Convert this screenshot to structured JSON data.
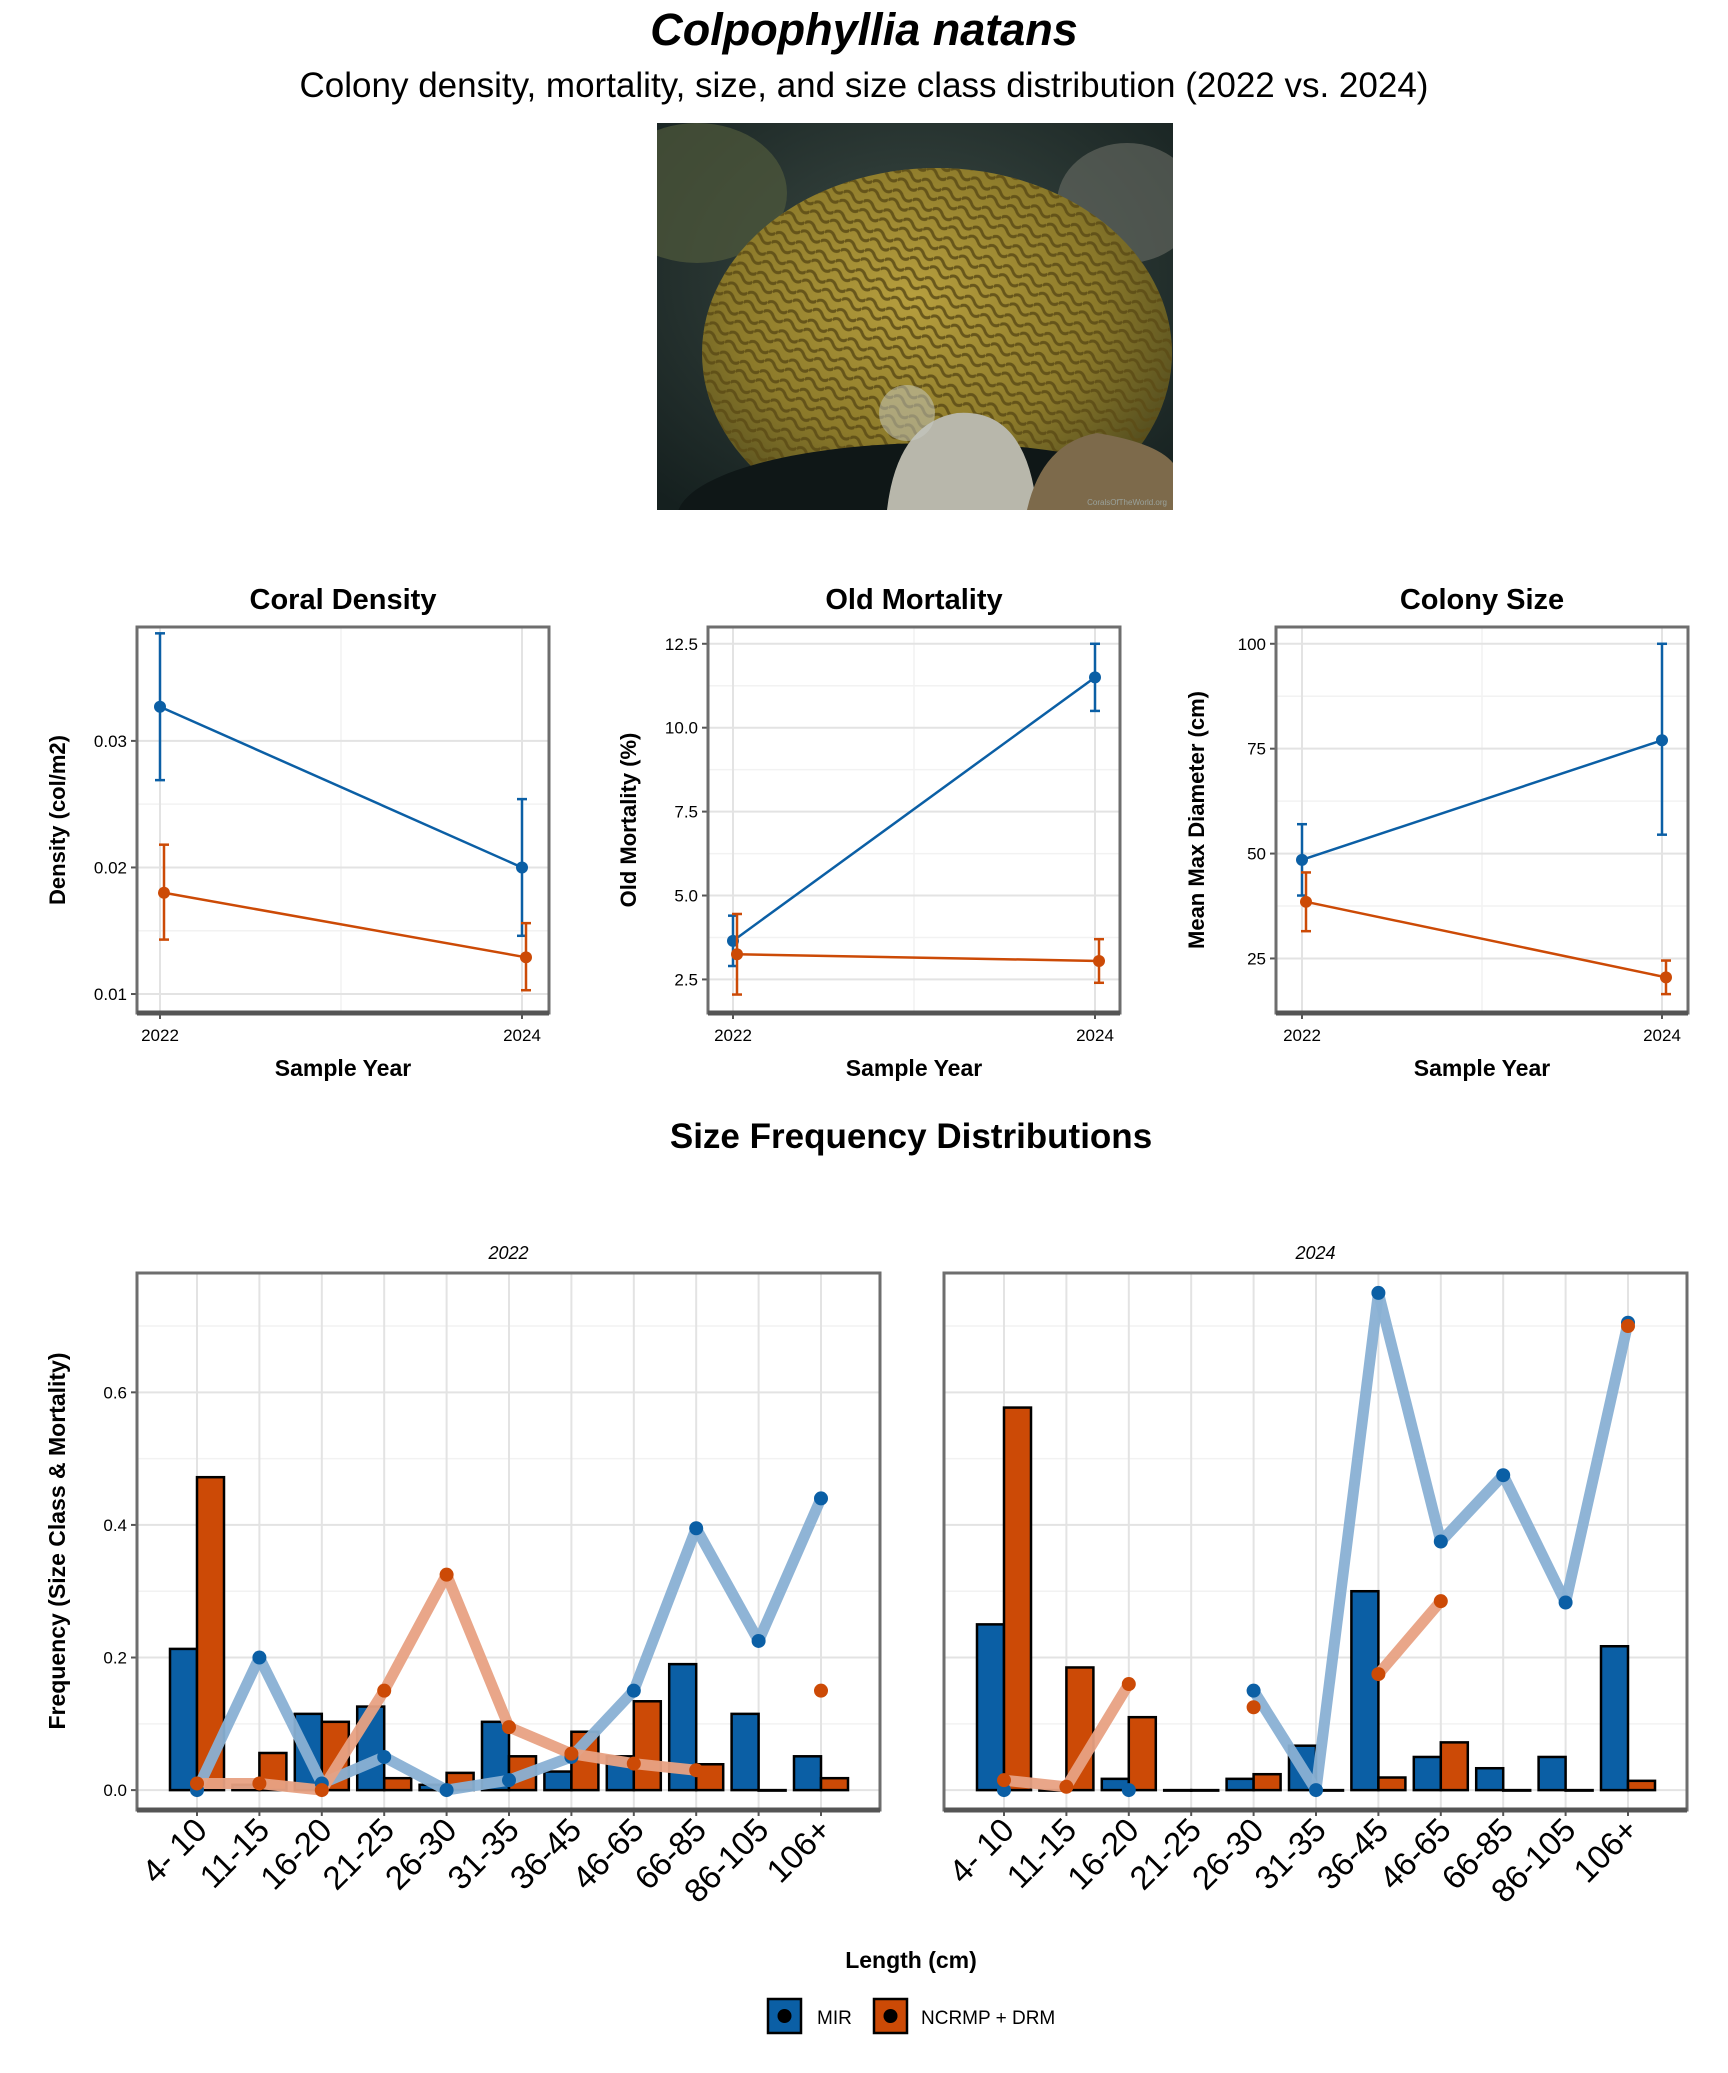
{
  "header": {
    "title": "Colpophyllia natans",
    "subtitle": "Colony density, mortality, size, and size class distribution (2022 vs. 2024)",
    "photo_credit": "CoralsOfTheWorld.org"
  },
  "colors": {
    "MIR": "#0B5FA5",
    "NCRMP + DRM": "#CC4A06",
    "MIR_line": "#8AB1D4",
    "NCRMP_line": "#E8A283"
  },
  "legend": {
    "items": [
      "MIR",
      "NCRMP + DRM"
    ],
    "placement": "bottom"
  },
  "section_title": "Size Frequency Distributions",
  "chart_data": [
    {
      "type": "line",
      "title": "Coral Density",
      "xlabel": "Sample Year",
      "ylabel": "Density (col/m2)",
      "x": [
        2022,
        2024
      ],
      "ylim": [
        0.0085,
        0.039
      ],
      "yticks": [
        0.01,
        0.02,
        0.03
      ],
      "ytick_labels": [
        "0.01",
        "0.02",
        "0.03"
      ],
      "xtick_labels": [
        "2022",
        "2024"
      ],
      "grid": true,
      "series": [
        {
          "name": "MIR",
          "values": [
            0.0327,
            0.02
          ],
          "lower": [
            0.0269,
            0.0146
          ],
          "upper": [
            0.0385,
            0.0254
          ]
        },
        {
          "name": "NCRMP + DRM",
          "values": [
            0.018,
            0.0129
          ],
          "lower": [
            0.0143,
            0.0103
          ],
          "upper": [
            0.0218,
            0.0156
          ]
        }
      ]
    },
    {
      "type": "line",
      "title": "Old Mortality",
      "xlabel": "Sample Year",
      "ylabel": "Old Mortality (%)",
      "x": [
        2022,
        2024
      ],
      "ylim": [
        1.5,
        13.0
      ],
      "yticks": [
        2.5,
        5.0,
        7.5,
        10.0,
        12.5
      ],
      "ytick_labels": [
        "2.5",
        "5.0",
        "7.5",
        "10.0",
        "12.5"
      ],
      "xtick_labels": [
        "2022",
        "2024"
      ],
      "grid": true,
      "series": [
        {
          "name": "MIR",
          "values": [
            3.65,
            11.5
          ],
          "lower": [
            2.9,
            10.5
          ],
          "upper": [
            4.4,
            12.5
          ]
        },
        {
          "name": "NCRMP + DRM",
          "values": [
            3.25,
            3.05
          ],
          "lower": [
            2.05,
            2.4
          ],
          "upper": [
            4.45,
            3.7
          ]
        }
      ]
    },
    {
      "type": "line",
      "title": "Colony Size",
      "xlabel": "Sample Year",
      "ylabel": "Mean Max Diameter (cm)",
      "x": [
        2022,
        2024
      ],
      "ylim": [
        12,
        104
      ],
      "yticks": [
        25,
        50,
        75,
        100
      ],
      "ytick_labels": [
        "25",
        "50",
        "75",
        "100"
      ],
      "xtick_labels": [
        "2022",
        "2024"
      ],
      "grid": true,
      "series": [
        {
          "name": "MIR",
          "values": [
            48.5,
            77.0
          ],
          "lower": [
            40,
            54.5
          ],
          "upper": [
            57,
            100
          ]
        },
        {
          "name": "NCRMP + DRM",
          "values": [
            38.5,
            20.5
          ],
          "lower": [
            31.5,
            16.5
          ],
          "upper": [
            45.5,
            24.5
          ]
        }
      ]
    },
    {
      "type": "bar",
      "facet": "2022",
      "xlabel": "Length (cm)",
      "ylabel": "Frequency (Size Class & Mortality)",
      "categories": [
        "4- 10",
        "11-15",
        "16-20",
        "21-25",
        "26-30",
        "31-35",
        "36-45",
        "46-65",
        "66-85",
        "86-105",
        "106+"
      ],
      "ylim": [
        -0.03,
        0.78
      ],
      "yticks": [
        0.0,
        0.2,
        0.4,
        0.6
      ],
      "ytick_labels": [
        "0.0",
        "0.2",
        "0.4",
        "0.6"
      ],
      "grid": true,
      "bar_series": [
        {
          "name": "MIR",
          "values": [
            0.213,
            0.008,
            0.115,
            0.126,
            0.008,
            0.103,
            0.028,
            0.051,
            0.19,
            0.115,
            0.051
          ]
        },
        {
          "name": "NCRMP + DRM",
          "values": [
            0.472,
            0.056,
            0.103,
            0.018,
            0.026,
            0.051,
            0.088,
            0.134,
            0.039,
            0.0,
            0.018
          ]
        }
      ],
      "mortality_series": [
        {
          "name": "MIR",
          "values": [
            0.0,
            0.2,
            0.01,
            0.05,
            0.0,
            0.015,
            0.05,
            0.15,
            0.395,
            0.225,
            0.44
          ]
        },
        {
          "name": "NCRMP + DRM",
          "values": [
            0.01,
            0.01,
            0.0,
            0.15,
            0.325,
            0.095,
            0.055,
            0.04,
            0.03,
            null,
            0.15
          ]
        }
      ]
    },
    {
      "type": "bar",
      "facet": "2024",
      "xlabel": "Length (cm)",
      "ylabel": "Frequency (Size Class & Mortality)",
      "categories": [
        "4- 10",
        "11-15",
        "16-20",
        "21-25",
        "26-30",
        "31-35",
        "36-45",
        "46-65",
        "66-85",
        "86-105",
        "106+"
      ],
      "ylim": [
        -0.03,
        0.78
      ],
      "yticks": [
        0.0,
        0.2,
        0.4,
        0.6
      ],
      "ytick_labels": [
        "0.0",
        "0.2",
        "0.4",
        "0.6"
      ],
      "grid": true,
      "bar_series": [
        {
          "name": "MIR",
          "values": [
            0.25,
            0.0,
            0.017,
            0.0,
            0.017,
            0.067,
            0.3,
            0.05,
            0.033,
            0.05,
            0.217
          ]
        },
        {
          "name": "NCRMP + DRM",
          "values": [
            0.577,
            0.185,
            0.11,
            0.0,
            0.024,
            0.0,
            0.019,
            0.072,
            0.0,
            0.0,
            0.014
          ]
        }
      ],
      "mortality_series": [
        {
          "name": "MIR",
          "values": [
            0.0,
            null,
            0.0,
            null,
            0.15,
            0.0,
            0.75,
            0.375,
            0.475,
            0.283,
            0.705
          ]
        },
        {
          "name": "NCRMP + DRM",
          "values": [
            0.015,
            0.005,
            0.16,
            null,
            0.125,
            null,
            0.175,
            0.285,
            null,
            null,
            0.7
          ]
        }
      ]
    }
  ]
}
